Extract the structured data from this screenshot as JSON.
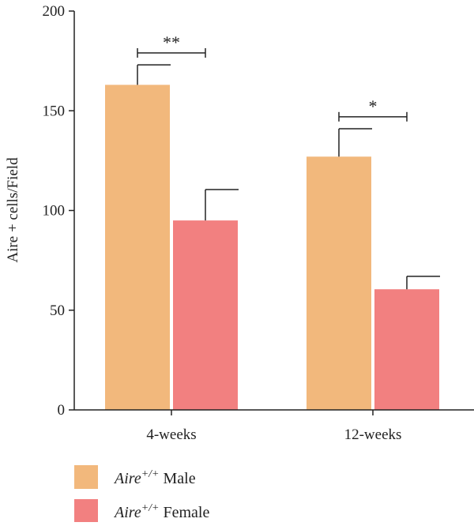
{
  "chart_data": {
    "type": "bar",
    "ylabel": "Aire + cells/Field",
    "xlabel": "",
    "ylim": [
      0,
      200
    ],
    "yticks": [
      0,
      50,
      100,
      150,
      200
    ],
    "categories": [
      "4-weeks",
      "12-weeks"
    ],
    "series": [
      {
        "name_italic": "Aire",
        "name_sup": "+/+",
        "name_rest": " Male",
        "color": "#F2B87C",
        "values": [
          163,
          127
        ],
        "errors": [
          10,
          14
        ]
      },
      {
        "name_italic": "Aire",
        "name_sup": "+/+",
        "name_rest": " Female",
        "color": "#F28080",
        "values": [
          95,
          60.5
        ],
        "errors": [
          15.5,
          6.5
        ]
      }
    ],
    "significance": [
      {
        "category": "4-weeks",
        "label": "**",
        "y": 179
      },
      {
        "category": "12-weeks",
        "label": "*",
        "y": 147
      }
    ],
    "grid": false,
    "legend": "bottom-left"
  }
}
